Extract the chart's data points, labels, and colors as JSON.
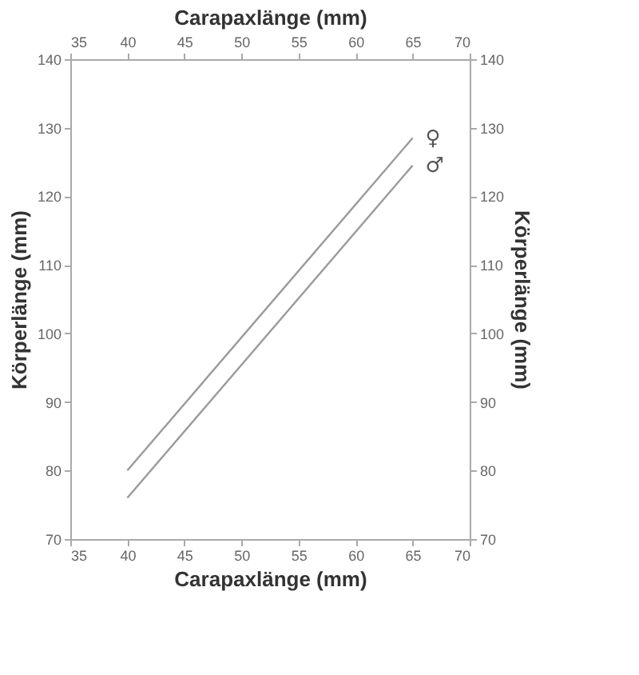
{
  "chart_data": {
    "type": "line",
    "xlabel": "Carapaxlänge (mm)",
    "x2label": "Carapaxlänge (mm)",
    "ylabel": "Körperlänge (mm)",
    "y2label": "Körperlänge (mm)",
    "x": [
      40,
      65
    ],
    "series": [
      {
        "name": "♀",
        "color": "#9a9a9a",
        "values": [
          80,
          128.5
        ]
      },
      {
        "name": "♂",
        "color": "#9a9a9a",
        "values": [
          76,
          124.5
        ]
      }
    ],
    "xlim": [
      35,
      70
    ],
    "xticks": [
      35,
      40,
      45,
      50,
      55,
      60,
      65,
      70
    ],
    "x2lim": [
      35,
      70
    ],
    "x2ticks": [
      35,
      40,
      45,
      50,
      55,
      60,
      65,
      70
    ],
    "ylim": [
      70,
      140
    ],
    "yticks": [
      70,
      80,
      90,
      100,
      110,
      120,
      130,
      140
    ],
    "y2lim": [
      70,
      140
    ],
    "y2ticks": [
      70,
      80,
      90,
      100,
      110,
      120,
      130,
      140
    ],
    "grid": false,
    "marker": "none",
    "line_style": "solid"
  }
}
